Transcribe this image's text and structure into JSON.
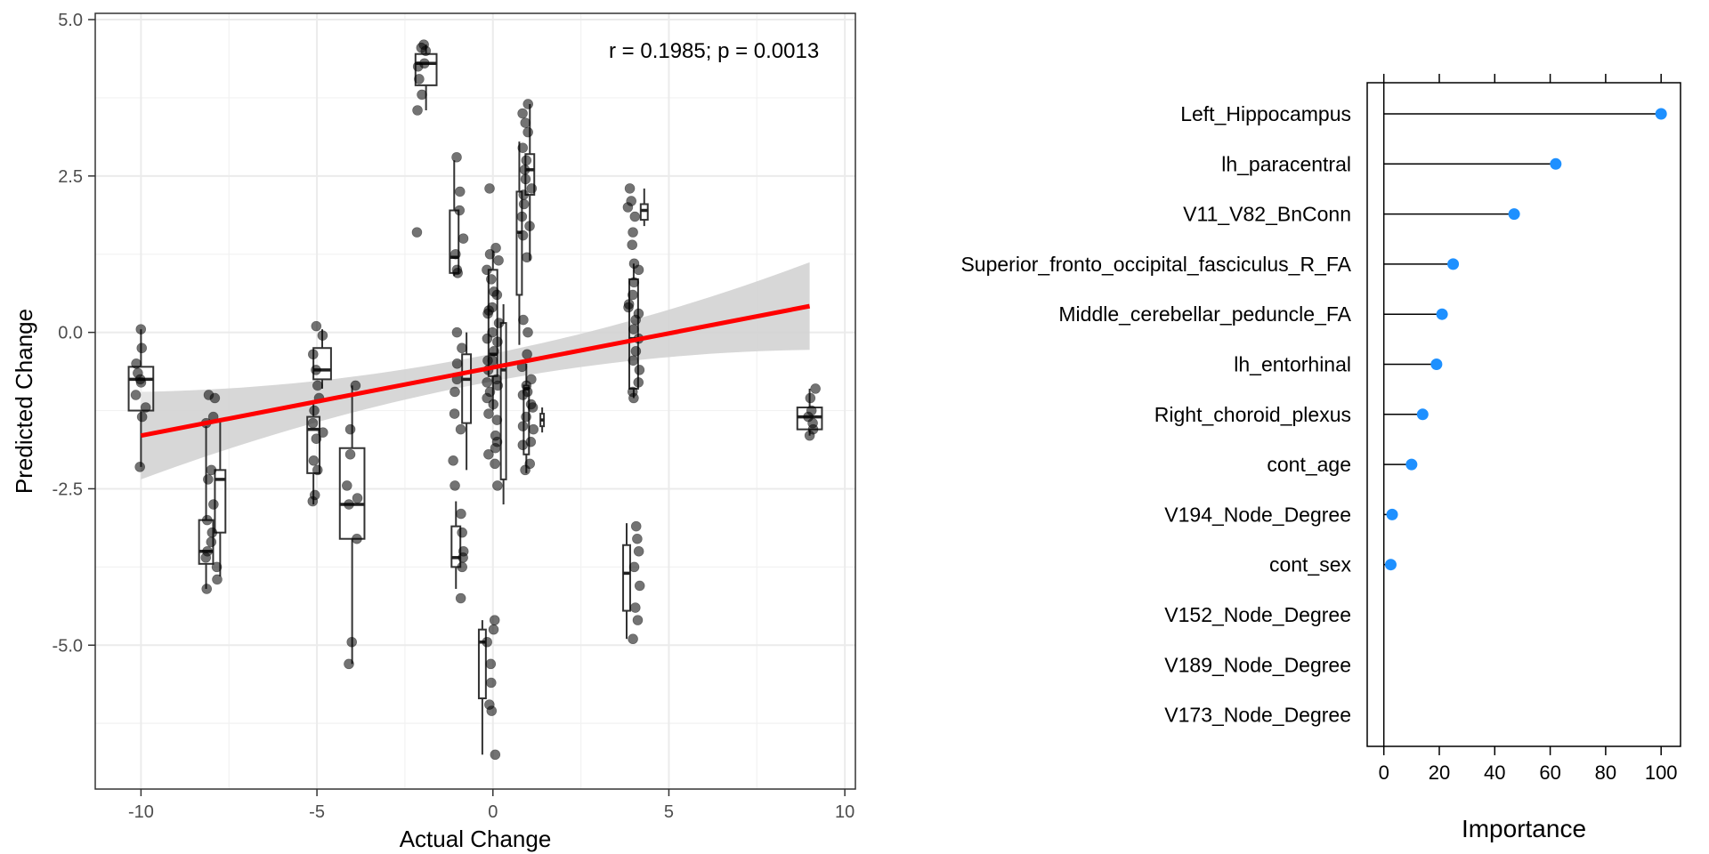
{
  "chart_data": [
    {
      "type": "scatter",
      "subtype": "scatter-with-boxplots-and-regression",
      "xlabel": "Actual Change",
      "ylabel": "Predicted Change",
      "annotation": "r = 0.1985; p = 0.0013",
      "xlim": [
        -11.3,
        10.3
      ],
      "ylim": [
        -7.3,
        5.1
      ],
      "x_ticks": [
        -10,
        -5,
        0,
        5,
        10
      ],
      "x_tick_labels": [
        "-10",
        "-5",
        "0",
        "5",
        "10"
      ],
      "y_ticks": [
        5.0,
        2.5,
        0.0,
        -2.5,
        -5.0
      ],
      "y_tick_labels": [
        "5.0",
        "2.5",
        "0.0",
        "-2.5",
        "-5.0"
      ],
      "grid": true,
      "regression": {
        "color": "#ff0000",
        "x": [
          -10,
          9
        ],
        "y": [
          -1.65,
          0.42
        ],
        "ci_lower": [
          -2.35,
          -0.28
        ],
        "ci_upper": [
          -0.95,
          1.12
        ],
        "ci_center_x": -0.4,
        "ci_center_halfwidth": 0.22,
        "ci_color": "#d3d3d3"
      },
      "groups": [
        {
          "x": -10,
          "box_offset": 0,
          "box_width": 0.7,
          "q1": -1.25,
          "median": -0.75,
          "q3": -0.55,
          "wlo": -2.15,
          "whi": 0.05,
          "points": [
            0.05,
            -0.25,
            -0.5,
            -0.65,
            -0.75,
            -0.8,
            -1.0,
            -1.2,
            -1.35,
            -2.15
          ]
        },
        {
          "x": -8,
          "box_offset": -0.15,
          "box_width": 0.4,
          "q1": -3.7,
          "median": -3.5,
          "q3": -3.0,
          "wlo": -4.1,
          "whi": -1.5,
          "points": [
            -1.0,
            -1.05,
            -1.35,
            -1.45,
            -2.2,
            -2.35,
            -2.75,
            -3.0,
            -3.2,
            -3.35,
            -3.5,
            -3.6,
            -3.75,
            -3.95,
            -4.1
          ]
        },
        {
          "x": -8,
          "box_offset": 0.25,
          "box_width": 0.3,
          "q1": -3.2,
          "median": -2.35,
          "q3": -2.2,
          "wlo": -3.9,
          "whi": -1.4,
          "points": []
        },
        {
          "x": -5,
          "box_offset": -0.1,
          "box_width": 0.35,
          "q1": -2.25,
          "median": -1.55,
          "q3": -1.35,
          "wlo": -2.75,
          "whi": -1.15,
          "points": [
            0.1,
            -0.05,
            -0.35,
            -0.6,
            -0.85,
            -1.05,
            -1.25,
            -1.45,
            -1.6,
            -1.7,
            -2.05,
            -2.2,
            -2.6,
            -2.7
          ]
        },
        {
          "x": -5,
          "box_offset": 0.15,
          "box_width": 0.5,
          "q1": -0.75,
          "median": -0.6,
          "q3": -0.25,
          "wlo": -0.9,
          "whi": 0.05,
          "points": []
        },
        {
          "x": -4,
          "box_offset": 0,
          "box_width": 0.7,
          "q1": -3.3,
          "median": -2.75,
          "q3": -1.85,
          "wlo": -5.3,
          "whi": -0.85,
          "points": [
            -0.85,
            -1.55,
            -1.95,
            -2.45,
            -2.65,
            -2.75,
            -3.3,
            -4.95,
            -5.3
          ]
        },
        {
          "x": -2,
          "box_offset": 0.1,
          "box_width": 0.6,
          "q1": 3.95,
          "median": 4.3,
          "q3": 4.45,
          "wlo": 3.55,
          "whi": 4.6,
          "points": [
            4.6,
            4.55,
            4.5,
            4.3,
            4.25,
            4.05,
            3.8,
            3.55,
            1.6
          ]
        },
        {
          "x": -1,
          "box_offset": -0.1,
          "box_width": 0.25,
          "q1": 0.95,
          "median": 1.2,
          "q3": 1.95,
          "wlo": 0.9,
          "whi": 2.75,
          "points": [
            2.8,
            2.25,
            1.95,
            1.5,
            1.25,
            1.0,
            0.95
          ]
        },
        {
          "x": -1,
          "box_offset": 0.25,
          "box_width": 0.25,
          "q1": -1.45,
          "median": -0.75,
          "q3": -0.35,
          "wlo": -2.2,
          "whi": 0.0,
          "points": [
            0.0,
            -0.25,
            -0.5,
            -0.75,
            -0.95,
            -1.3,
            -1.55,
            -2.05,
            -2.45,
            -2.9,
            -3.2,
            -3.5,
            -3.6,
            -3.75,
            -4.25
          ]
        },
        {
          "x": -1,
          "box_offset": -0.05,
          "box_width": 0.25,
          "q1": -3.75,
          "median": -3.6,
          "q3": -3.1,
          "wlo": -4.1,
          "whi": -2.7,
          "points": []
        },
        {
          "x": 0,
          "box_offset": -0.3,
          "box_width": 0.2,
          "q1": -5.85,
          "median": -4.95,
          "q3": -4.75,
          "wlo": -6.75,
          "whi": -4.6,
          "points": [
            -4.6,
            -4.75,
            -4.95,
            -5.3,
            -5.6,
            -5.95,
            -6.05,
            -6.75
          ]
        },
        {
          "x": 0,
          "box_offset": 0,
          "box_width": 0.25,
          "q1": -0.7,
          "median": -0.35,
          "q3": 1.0,
          "wlo": -1.25,
          "whi": 1.3,
          "points": [
            1.35,
            1.25,
            1.15,
            1.0,
            0.85,
            0.65,
            0.4,
            0.3,
            0.15,
            0.0,
            -0.15,
            -0.3,
            -0.45,
            -0.6,
            -0.75,
            -0.85,
            -0.95,
            -1.05,
            -1.3,
            -1.65,
            -1.85,
            -2.1,
            -2.45
          ]
        },
        {
          "x": 0,
          "box_offset": 0.3,
          "box_width": 0.15,
          "q1": -2.35,
          "median": -0.6,
          "q3": 0.15,
          "wlo": -2.75,
          "whi": 0.45,
          "points": [
            2.3,
            0.6,
            0.35,
            -0.1,
            -0.45,
            -0.8,
            -1.15,
            -1.4,
            -1.75,
            -1.95
          ]
        },
        {
          "x": 1,
          "box_offset": -0.25,
          "box_width": 0.15,
          "q1": 0.6,
          "median": 1.6,
          "q3": 2.25,
          "wlo": -0.2,
          "whi": 3.05,
          "points": []
        },
        {
          "x": 1,
          "box_offset": 0.05,
          "box_width": 0.25,
          "q1": 2.2,
          "median": 2.6,
          "q3": 2.85,
          "wlo": 1.15,
          "whi": 3.65,
          "points": [
            3.65,
            3.5,
            3.35,
            3.2,
            2.95,
            2.75,
            2.6,
            2.45,
            2.3,
            2.2,
            2.05,
            1.85,
            1.7,
            1.55,
            1.2,
            0.2,
            0.0,
            -0.35,
            -0.55,
            -0.75,
            -0.95,
            -1.15,
            -1.35,
            -1.55,
            -1.75,
            -2.1,
            -2.2
          ]
        },
        {
          "x": 1,
          "box_offset": -0.05,
          "box_width": 0.15,
          "q1": -1.95,
          "median": -0.9,
          "q3": -0.85,
          "wlo": -2.25,
          "whi": -0.5,
          "points": []
        },
        {
          "x": 1,
          "box_offset": 0.4,
          "box_width": 0.1,
          "q1": -1.5,
          "median": -1.4,
          "q3": -1.3,
          "wlo": -1.6,
          "whi": -1.2,
          "points": [
            -0.85,
            -1.0,
            -1.2,
            -1.5,
            -1.8
          ]
        },
        {
          "x": 4,
          "box_offset": 0,
          "box_width": 0.25,
          "q1": -0.9,
          "median": -0.1,
          "q3": 0.85,
          "wlo": -1.05,
          "whi": 1.1,
          "points": [
            2.3,
            2.1,
            2.0,
            1.85,
            1.6,
            1.4,
            1.1,
            1.0,
            0.8,
            0.6,
            0.45,
            0.3,
            0.2,
            0.05,
            -0.1,
            -0.3,
            -0.45,
            -0.6,
            -0.8,
            -0.95,
            -1.05
          ]
        },
        {
          "x": 4,
          "box_offset": -0.2,
          "box_width": 0.2,
          "q1": -4.45,
          "median": -3.85,
          "q3": -3.4,
          "wlo": -4.9,
          "whi": -3.05,
          "points": [
            -3.1,
            -3.3,
            -3.5,
            -3.75,
            -4.05,
            -4.4,
            -4.6,
            -4.9
          ]
        },
        {
          "x": 4,
          "box_offset": 0.3,
          "box_width": 0.2,
          "q1": 1.8,
          "median": 1.95,
          "q3": 2.05,
          "wlo": 1.7,
          "whi": 2.3,
          "points": [
            0.4
          ]
        },
        {
          "x": 9,
          "box_offset": 0,
          "box_width": 0.7,
          "q1": -1.55,
          "median": -1.35,
          "q3": -1.2,
          "wlo": -1.65,
          "whi": -0.9,
          "points": [
            -0.9,
            -1.05,
            -1.25,
            -1.35,
            -1.45,
            -1.55,
            -1.65
          ]
        }
      ]
    },
    {
      "type": "dotplot",
      "subtype": "lollipop-variable-importance",
      "xlabel": "Importance",
      "xlim": [
        -6,
        107
      ],
      "x_ticks": [
        0,
        20,
        40,
        60,
        80,
        100
      ],
      "x_tick_labels": [
        "0",
        "20",
        "40",
        "60",
        "80",
        "100"
      ],
      "point_color": "#1e90ff",
      "categories": [
        "Left_Hippocampus",
        "lh_paracentral",
        "V11_V82_BnConn",
        "Superior_fronto_occipital_fasciculus_R_FA",
        "Middle_cerebellar_peduncle_FA",
        "lh_entorhinal",
        "Right_choroid_plexus",
        "cont_age",
        "V194_Node_Degree",
        "cont_sex",
        "V152_Node_Degree",
        "V189_Node_Degree",
        "V173_Node_Degree"
      ],
      "values": [
        100,
        62,
        47,
        25,
        21,
        19,
        14,
        10,
        3,
        2.5,
        0,
        0,
        0
      ]
    }
  ]
}
